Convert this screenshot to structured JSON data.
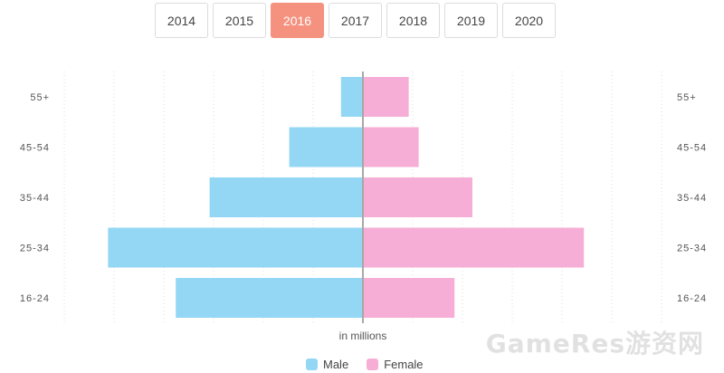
{
  "years": {
    "items": [
      "2014",
      "2015",
      "2016",
      "2017",
      "2018",
      "2019",
      "2020"
    ],
    "selected": "2016"
  },
  "chart_data": {
    "type": "bar",
    "orientation": "horizontal",
    "layout": "population-pyramid",
    "categories": [
      "55+",
      "45-54",
      "35-44",
      "25-34",
      "16-24"
    ],
    "series": [
      {
        "name": "Male",
        "side": "left",
        "values": [
          1.1,
          3.7,
          7.7,
          12.8,
          9.4
        ],
        "color": "#93d7f5"
      },
      {
        "name": "Female",
        "side": "right",
        "values": [
          2.3,
          2.8,
          5.5,
          11.1,
          4.6
        ],
        "color": "#f7aed6"
      }
    ],
    "x_range": [
      -15,
      15
    ],
    "xlabel": "in millions",
    "grid": "vertical dotted",
    "legend_position": "bottom-center"
  },
  "watermark": "GameRes游资网"
}
